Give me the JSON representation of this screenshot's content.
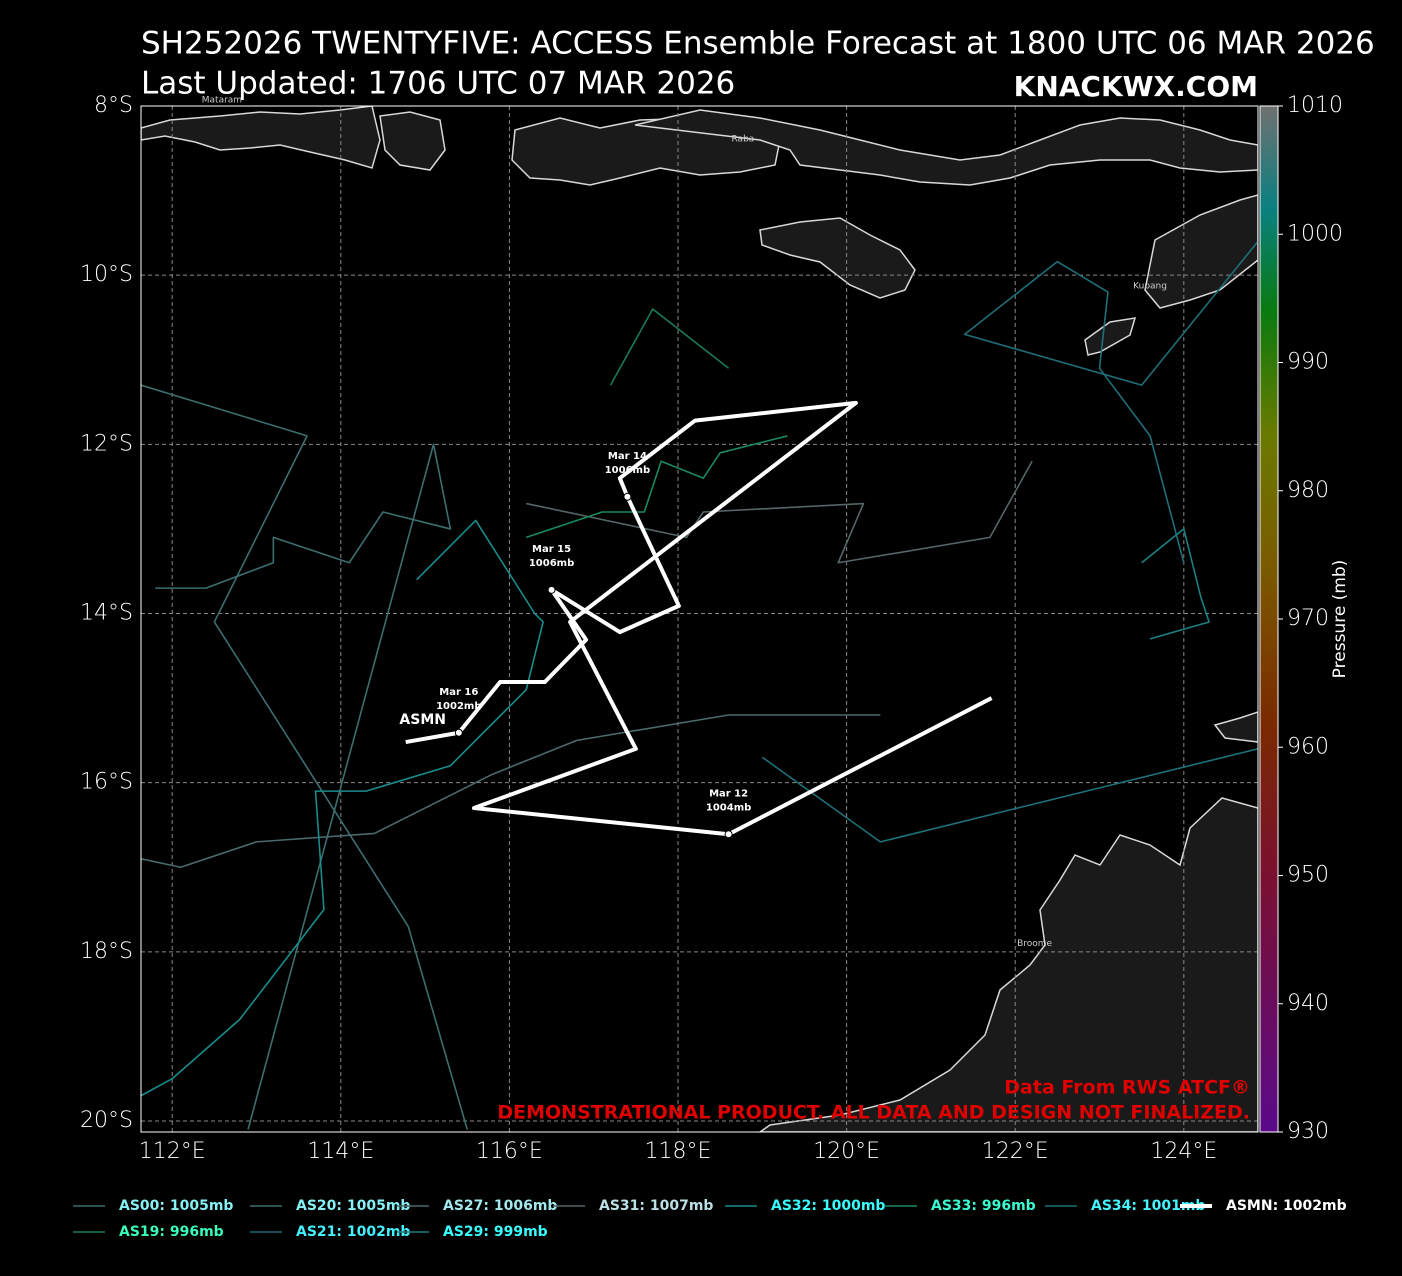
{
  "chart_data": {
    "type": "track-map",
    "title": "SH252026 TWENTYFIVE: ACCESS Ensemble Forecast at 1800 UTC 06 MAR 2026",
    "subtitle": "Last Updated: 1706 UTC 07 MAR 2026",
    "watermark": "KNACKWX.COM",
    "credit": "Data From RWS ATCF®",
    "disclaimer": "DEMONSTRATIONAL PRODUCT. ALL DATA AND DESIGN NOT FINALIZED.",
    "xlim": [
      111.63,
      124.88
    ],
    "ylim": [
      -20.13,
      -8
    ],
    "xticks": [
      {
        "value": 112,
        "label": "112°E"
      },
      {
        "value": 114,
        "label": "114°E"
      },
      {
        "value": 116,
        "label": "116°E"
      },
      {
        "value": 118,
        "label": "118°E"
      },
      {
        "value": 120,
        "label": "120°E"
      },
      {
        "value": 122,
        "label": "122°E"
      },
      {
        "value": 124,
        "label": "124°E"
      }
    ],
    "yticks": [
      {
        "value": -8,
        "label": "8°S"
      },
      {
        "value": -10,
        "label": "10°S"
      },
      {
        "value": -12,
        "label": "12°S"
      },
      {
        "value": -14,
        "label": "14°S"
      },
      {
        "value": -16,
        "label": "16°S"
      },
      {
        "value": -18,
        "label": "18°S"
      },
      {
        "value": -20,
        "label": "20°S"
      }
    ],
    "grid": true,
    "colorbar": {
      "label": "Pressure (mb)",
      "lim": [
        930,
        1010
      ],
      "ticks": [
        930,
        940,
        950,
        960,
        970,
        980,
        990,
        1000,
        1010
      ]
    },
    "places": [
      {
        "name": "Mataram",
        "x": 112.59,
        "y": -7.93
      },
      {
        "name": "Raba",
        "x": 118.77,
        "y": -8.39
      },
      {
        "name": "Kupang",
        "x": 123.6,
        "y": -10.13
      },
      {
        "name": "Broome",
        "x": 122.23,
        "y": -17.9
      }
    ],
    "series": [
      {
        "name": "AS00: 1005mb",
        "color": "#3d6e70",
        "x": [
          111.63,
          113.6,
          112.5,
          114.8,
          115.5
        ],
        "values": [
          -11.3,
          -11.9,
          -14.1,
          -17.7,
          -20.1
        ]
      },
      {
        "name": "AS19: 996mb",
        "color": "#1a7a55",
        "x": [
          117.2,
          117.7,
          118.6
        ],
        "values": [
          -11.3,
          -10.4,
          -11.1
        ]
      },
      {
        "name": "AS20: 1005mb",
        "color": "#3d6e70",
        "x": [
          112.9,
          115.1,
          115.3,
          114.5,
          114.1,
          113.2,
          113.2,
          112.4,
          111.8
        ],
        "values": [
          -20.1,
          -12.0,
          -13.0,
          -12.8,
          -13.4,
          -13.1,
          -13.4,
          -13.7,
          -13.7
        ]
      },
      {
        "name": "AS21: 1002mb",
        "color": "#1f6e78",
        "x": [
          124.88,
          123.5,
          121.4,
          122.5,
          123.1,
          123.0,
          123.6,
          124.0
        ],
        "values": [
          -9.6,
          -11.3,
          -10.7,
          -9.84,
          -10.2,
          -11.1,
          -11.9,
          -13.4
        ]
      },
      {
        "name": "AS27: 1006mb",
        "color": "#4a6a6c",
        "x": [
          111.63,
          112.1,
          113.0,
          114.4,
          115.8,
          116.8,
          118.6,
          120.4
        ],
        "values": [
          -16.9,
          -17.0,
          -16.7,
          -16.6,
          -15.9,
          -15.5,
          -15.2,
          -15.2
        ]
      },
      {
        "name": "AS29: 999mb",
        "color": "#1a8080",
        "x": [
          123.5,
          124.0,
          124.2,
          124.3,
          123.6
        ],
        "values": [
          -13.4,
          -13.0,
          -13.8,
          -14.1,
          -14.3
        ]
      },
      {
        "name": "AS31: 1007mb",
        "color": "#556668",
        "x": [
          116.2,
          118.1,
          118.3,
          120.2,
          119.9,
          121.7,
          122.2
        ],
        "values": [
          -12.7,
          -13.1,
          -12.8,
          -12.7,
          -13.4,
          -13.1,
          -12.2
        ]
      },
      {
        "name": "AS32: 1000mb",
        "color": "#1a8c8c",
        "x": [
          111.63,
          112.0,
          112.8,
          113.8,
          113.7,
          114.3,
          115.3,
          116.2,
          116.4,
          116.3,
          115.6,
          114.9
        ],
        "values": [
          -19.7,
          -19.5,
          -18.8,
          -17.5,
          -16.1,
          -16.1,
          -15.8,
          -14.9,
          -14.1,
          -14.0,
          -12.9,
          -13.6
        ]
      },
      {
        "name": "AS33: 996mb",
        "color": "#1a8a60",
        "x": [
          116.2,
          117.1,
          117.6,
          117.8,
          118.3,
          118.5,
          119.3
        ],
        "values": [
          -13.1,
          -12.8,
          -12.8,
          -12.2,
          -12.4,
          -12.1,
          -11.9
        ]
      },
      {
        "name": "AS34: 1001mb",
        "color": "#1f7078",
        "x": [
          124.88,
          120.4,
          119.0
        ],
        "values": [
          -15.6,
          -16.7,
          -15.7
        ]
      },
      {
        "name": "ASMN: 1002mb",
        "color": "#ffffff",
        "end_label": "ASMN",
        "x": [
          121.72,
          118.6,
          115.58,
          117.5,
          116.72,
          120.11,
          118.2,
          117.31,
          117.4,
          118.01,
          117.31,
          116.5,
          116.91,
          116.42,
          115.89,
          115.4,
          114.77
        ],
        "values": [
          -15.0,
          -16.61,
          -16.3,
          -15.6,
          -14.1,
          -11.51,
          -11.72,
          -12.4,
          -12.62,
          -13.91,
          -14.22,
          -13.72,
          -14.31,
          -14.81,
          -14.81,
          -15.41,
          -15.52
        ]
      }
    ],
    "annotations": [
      {
        "lines": [
          "Mar 12",
          "1004mb"
        ],
        "x": 118.6,
        "y": -16.61
      },
      {
        "lines": [
          "Mar 14",
          "1006mb"
        ],
        "x": 117.4,
        "y": -12.62
      },
      {
        "lines": [
          "Mar 15",
          "1006mb"
        ],
        "x": 116.5,
        "y": -13.72
      },
      {
        "lines": [
          "Mar 16",
          "1002mb"
        ],
        "x": 115.4,
        "y": -15.41
      }
    ]
  }
}
